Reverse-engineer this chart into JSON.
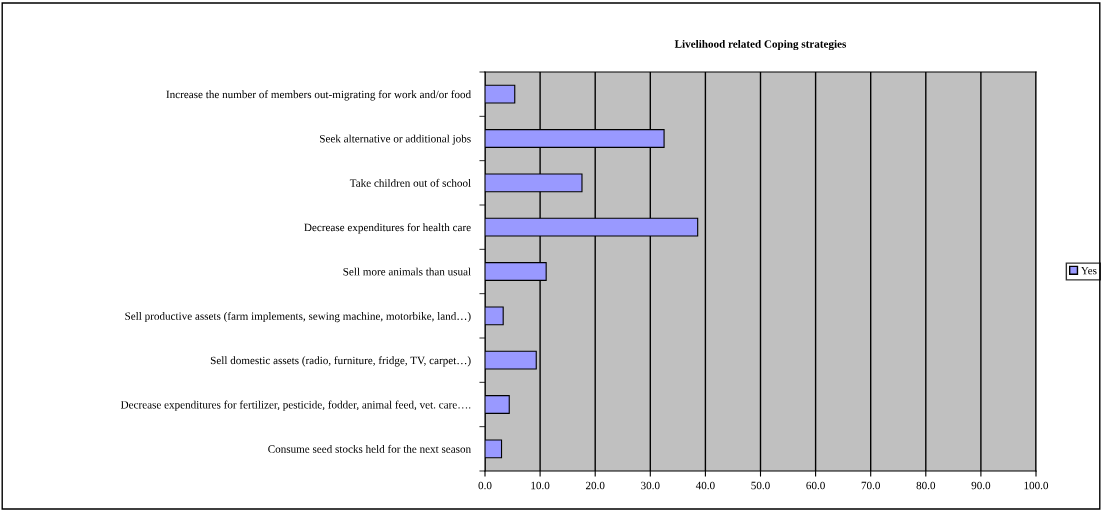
{
  "chart_data": {
    "type": "bar",
    "orientation": "horizontal",
    "title": "Livelihood related Coping strategies",
    "categories": [
      "Increase the number of members out-migrating for work and/or food",
      "Seek alternative or additional jobs",
      "Take children out of school",
      "Decrease expenditures for health care",
      "Sell more animals than usual",
      "Sell productive assets (farm implements, sewing machine, motorbike, land…)",
      "Sell domestic assets (radio, furniture, fridge, TV, carpet…)",
      "Decrease expenditures for fertilizer, pesticide, fodder, animal feed, vet. care….",
      "Consume seed stocks held for the next season"
    ],
    "series": [
      {
        "name": "Yes",
        "color": "#9999ff",
        "values": [
          5.4,
          32.5,
          17.6,
          38.6,
          11.1,
          3.3,
          9.3,
          4.4,
          3.0
        ]
      }
    ],
    "xlim": [
      0,
      100
    ],
    "xticks": [
      {
        "value": 0,
        "label": "0.0"
      },
      {
        "value": 10,
        "label": "10.0"
      },
      {
        "value": 20,
        "label": "20.0"
      },
      {
        "value": 30,
        "label": "30.0"
      },
      {
        "value": 40,
        "label": "40.0"
      },
      {
        "value": 50,
        "label": "50.0"
      },
      {
        "value": 60,
        "label": "60.0"
      },
      {
        "value": 70,
        "label": "70.0"
      },
      {
        "value": 80,
        "label": "80.0"
      },
      {
        "value": 90,
        "label": "90.0"
      },
      {
        "value": 100,
        "label": "100.0"
      }
    ],
    "grid": "x",
    "legend": "right"
  }
}
